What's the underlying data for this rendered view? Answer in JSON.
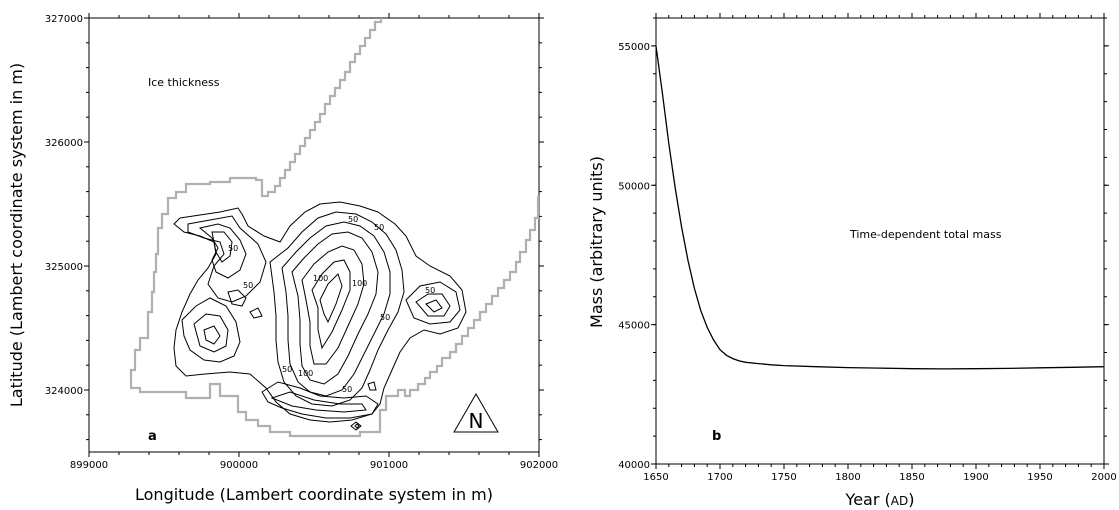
{
  "chart_data": [
    {
      "type": "contour",
      "panel_label": "a",
      "annotation": "Ice thickness",
      "xlabel": "Longitude (Lambert coordinate system in m)",
      "ylabel": "Latitude (Lambert coordinate system in m)",
      "xlim": [
        899000,
        902000
      ],
      "ylim": [
        323500,
        327000
      ],
      "x_ticks": [
        "899000",
        "900000",
        "901000",
        "902000"
      ],
      "y_ticks": [
        "324000",
        "325000",
        "326000",
        "327000"
      ],
      "contour_labels": [
        "50",
        "50",
        "50",
        "50",
        "100",
        "100",
        "50",
        "100",
        "50",
        "50",
        "50"
      ],
      "north_arrow_label": "N",
      "boundary_color": "#b0b0b0",
      "contour_color": "#000000"
    },
    {
      "type": "line",
      "panel_label": "b",
      "annotation": "Time-dependent total mass",
      "xlabel_main": "Year (",
      "xlabel_unit": "AD",
      "xlabel_close": ")",
      "ylabel": "Mass (arbitrary units)",
      "xlim": [
        1650,
        2000
      ],
      "ylim": [
        40000,
        56000
      ],
      "x_ticks": [
        "1650",
        "1700",
        "1750",
        "1800",
        "1850",
        "1900",
        "1950",
        "2000"
      ],
      "y_ticks": [
        "40000",
        "45000",
        "50000",
        "55000"
      ],
      "series": [
        {
          "x": [
            1650,
            1655,
            1660,
            1665,
            1670,
            1675,
            1680,
            1685,
            1690,
            1695,
            1700,
            1705,
            1710,
            1715,
            1720,
            1730,
            1740,
            1750,
            1775,
            1800,
            1825,
            1850,
            1875,
            1900,
            1925,
            1950,
            1975,
            2000
          ],
          "y": [
            55000,
            53300,
            51500,
            49900,
            48500,
            47300,
            46300,
            45500,
            44900,
            44450,
            44100,
            43900,
            43780,
            43700,
            43650,
            43600,
            43560,
            43530,
            43490,
            43460,
            43440,
            43420,
            43410,
            43420,
            43430,
            43450,
            43470,
            43490
          ]
        }
      ],
      "line_color": "#000000"
    }
  ]
}
